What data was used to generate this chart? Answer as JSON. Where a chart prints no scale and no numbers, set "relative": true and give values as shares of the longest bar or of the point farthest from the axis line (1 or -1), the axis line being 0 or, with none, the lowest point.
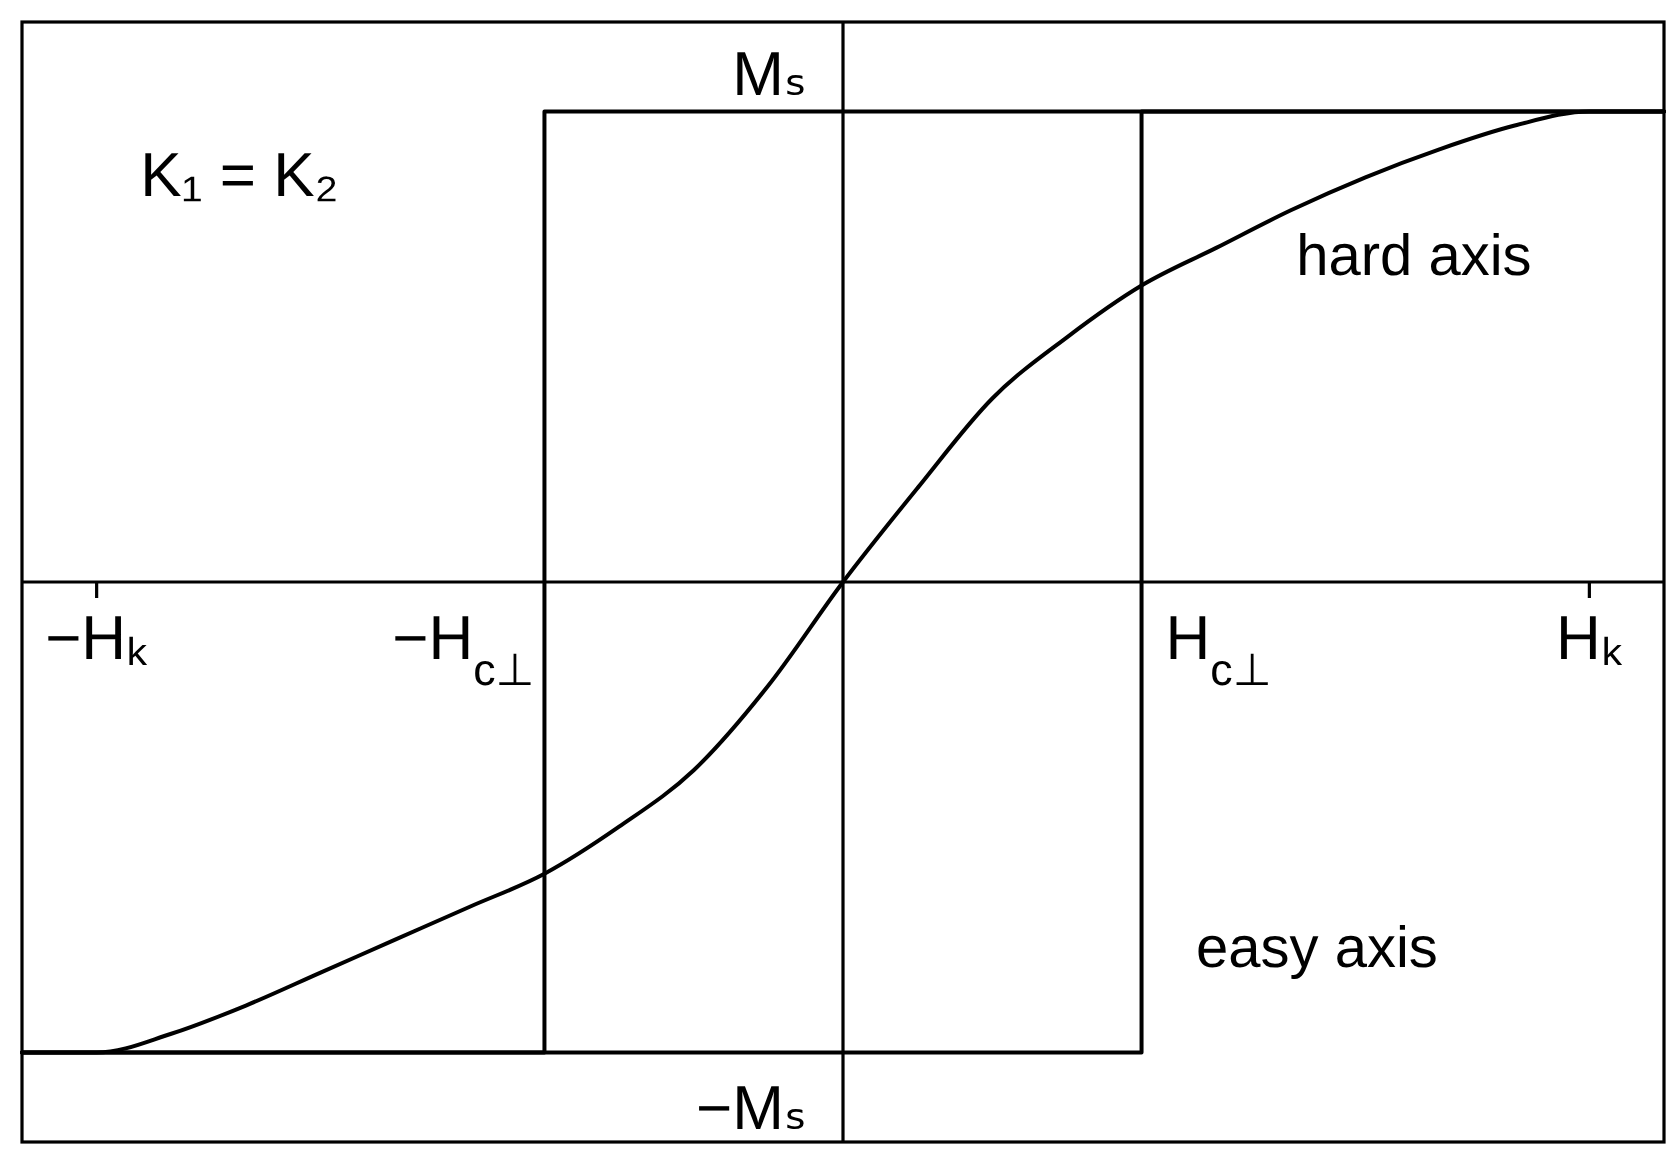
{
  "chart_data": {
    "type": "line",
    "relative": true,
    "categories": [
      null,
      "−Hₖ",
      null,
      null,
      null,
      null,
      null,
      null,
      null,
      null,
      null,
      null,
      null,
      null,
      null,
      null,
      null,
      null,
      null,
      null,
      null,
      "Hₖ",
      null
    ],
    "series": [
      {
        "name": "hard axis",
        "color": "#000000",
        "values": [
          -1,
          -1,
          -0.96,
          -0.9,
          -0.83,
          -0.76,
          -0.69,
          -0.62,
          -0.52,
          -0.4,
          -0.22,
          0,
          0.2,
          0.39,
          0.52,
          0.63,
          0.71,
          0.79,
          0.86,
          0.92,
          0.97,
          1,
          1
        ]
      },
      {
        "name": "easy axis",
        "type": "step",
        "color": "#000000",
        "values": [
          -1,
          -1,
          -1,
          -1,
          -1,
          -1,
          -1,
          -1,
          -1,
          -1,
          -1,
          -1,
          -1,
          -1,
          -1,
          1,
          1,
          1,
          1,
          1,
          1,
          1,
          1
        ]
      },
      {
        "type": "step",
        "color": "#000000",
        "values": [
          -1,
          -1,
          -1,
          -1,
          -1,
          -1,
          -1,
          1,
          1,
          1,
          1,
          1,
          1,
          1,
          1,
          1,
          1,
          1,
          1,
          1,
          1,
          1,
          1
        ]
      }
    ],
    "annotations": [
      "K₁ = K₂",
      "−H$_{c⊥}$",
      "H$_{c⊥}$",
      {
        "text": "Mₛ",
        "y": 1
      },
      {
        "text": "−Mₛ",
        "y": -1
      }
    ]
  }
}
